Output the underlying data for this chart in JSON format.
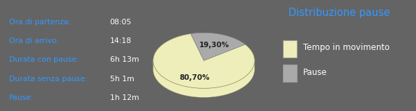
{
  "background_color": "#646464",
  "divider_color": "#5599aa",
  "left_labels": [
    [
      "Ora di partenza:",
      "08:05"
    ],
    [
      "Ora di arrivo:",
      "14:18"
    ],
    [
      "Durata con pause:",
      "6h 13m"
    ],
    [
      "Durata senza pause:",
      "5h 1m"
    ],
    [
      "Pause:",
      "1h 12m"
    ]
  ],
  "label_color": "#3399ff",
  "value_color": "#ffffff",
  "chart_title": "Distribuzione pause",
  "chart_title_color": "#3399ff",
  "pie_values": [
    80.7,
    19.3
  ],
  "pie_labels": [
    "80,70%",
    "19,30%"
  ],
  "pie_colors": [
    "#eeeebb",
    "#aaaaaa"
  ],
  "pie_edge_colors": [
    "#cccc88",
    "#888888"
  ],
  "legend_labels": [
    "Tempo in movimento",
    "Pause"
  ],
  "legend_colors": [
    "#eeeebb",
    "#aaaaaa"
  ],
  "label_fontsize": 7.8,
  "title_fontsize": 10.5,
  "legend_fontsize": 8.5
}
